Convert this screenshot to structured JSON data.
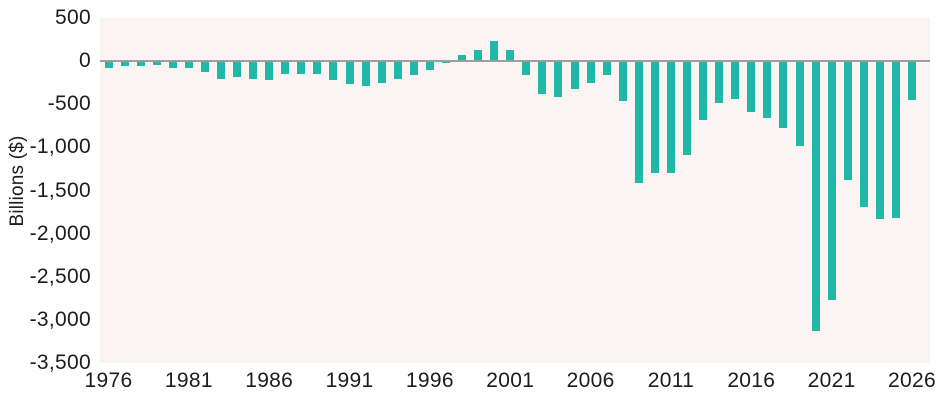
{
  "chart_data": {
    "type": "bar",
    "title": "",
    "xlabel": "",
    "ylabel": "Billions ($)",
    "ylim": [
      -3500,
      500
    ],
    "grid": false,
    "legend": "none",
    "colors": {
      "bar": "#20b8a6",
      "plot_background": "#fcf4f3",
      "page_background": "#ffffff",
      "zero_line": "#9e9e9e",
      "text": "#1c1c1c"
    },
    "y_ticks": [
      {
        "label": "500",
        "value": 500
      },
      {
        "label": "0",
        "value": 0
      },
      {
        "label": "-500",
        "value": -500
      },
      {
        "label": "-1,000",
        "value": -1000
      },
      {
        "label": "-1,500",
        "value": -1500
      },
      {
        "label": "-2,000",
        "value": -2000
      },
      {
        "label": "-2,500",
        "value": -2500
      },
      {
        "label": "-3,000",
        "value": -3000
      },
      {
        "label": "-3,500",
        "value": -3500
      }
    ],
    "x_ticks": [
      {
        "label": "1976",
        "year": 1976
      },
      {
        "label": "1981",
        "year": 1981
      },
      {
        "label": "1986",
        "year": 1986
      },
      {
        "label": "1991",
        "year": 1991
      },
      {
        "label": "1996",
        "year": 1996
      },
      {
        "label": "2001",
        "year": 2001
      },
      {
        "label": "2006",
        "year": 2006
      },
      {
        "label": "2011",
        "year": 2011
      },
      {
        "label": "2016",
        "year": 2016
      },
      {
        "label": "2021",
        "year": 2021
      },
      {
        "label": "2026",
        "year": 2026
      }
    ],
    "categories": [
      1976,
      1977,
      1978,
      1979,
      1980,
      1981,
      1982,
      1983,
      1984,
      1985,
      1986,
      1987,
      1988,
      1989,
      1990,
      1991,
      1992,
      1993,
      1994,
      1995,
      1996,
      1997,
      1998,
      1999,
      2000,
      2001,
      2002,
      2003,
      2004,
      2005,
      2006,
      2007,
      2008,
      2009,
      2010,
      2011,
      2012,
      2013,
      2014,
      2015,
      2016,
      2017,
      2018,
      2019,
      2020,
      2021,
      2022,
      2023,
      2024,
      2025,
      2026
    ],
    "values": [
      -74,
      -54,
      -59,
      -41,
      -74,
      -79,
      -128,
      -208,
      -185,
      -212,
      -221,
      -150,
      -155,
      -153,
      -221,
      -269,
      -290,
      -255,
      -203,
      -164,
      -107,
      -22,
      69,
      126,
      236,
      128,
      -158,
      -378,
      -413,
      -318,
      -248,
      -161,
      -459,
      -1413,
      -1294,
      -1300,
      -1087,
      -680,
      -485,
      -442,
      -585,
      -665,
      -779,
      -984,
      -3132,
      -2772,
      -1375,
      -1695,
      -1833,
      -1820,
      -450
    ]
  }
}
